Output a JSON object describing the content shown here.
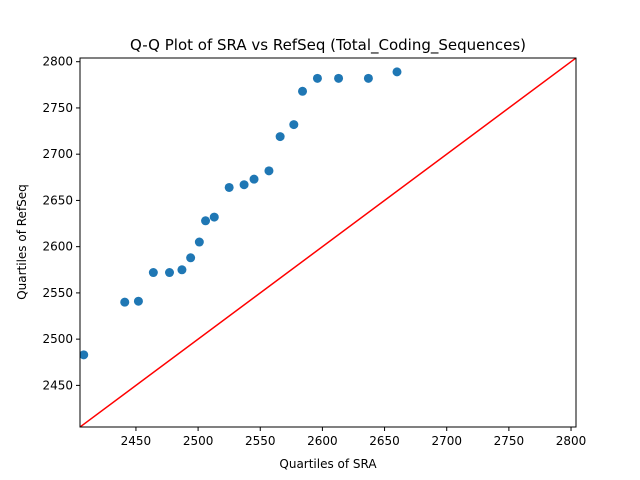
{
  "chart_data": {
    "type": "scatter",
    "title": "Q-Q Plot of SRA vs RefSeq (Total_Coding_Sequences)",
    "xlabel": "Quartiles of SRA",
    "ylabel": "Quartiles of RefSeq",
    "xlim": [
      2405,
      2804
    ],
    "ylim": [
      2405,
      2804
    ],
    "xticks": [
      2450,
      2500,
      2550,
      2600,
      2650,
      2700,
      2750,
      2800
    ],
    "yticks": [
      2450,
      2500,
      2550,
      2600,
      2650,
      2700,
      2750,
      2800
    ],
    "grid": false,
    "points": [
      {
        "x": 2408,
        "y": 2483
      },
      {
        "x": 2441,
        "y": 2540
      },
      {
        "x": 2452,
        "y": 2541
      },
      {
        "x": 2464,
        "y": 2572
      },
      {
        "x": 2477,
        "y": 2572
      },
      {
        "x": 2487,
        "y": 2575
      },
      {
        "x": 2494,
        "y": 2588
      },
      {
        "x": 2501,
        "y": 2605
      },
      {
        "x": 2506,
        "y": 2628
      },
      {
        "x": 2513,
        "y": 2632
      },
      {
        "x": 2525,
        "y": 2664
      },
      {
        "x": 2537,
        "y": 2667
      },
      {
        "x": 2545,
        "y": 2673
      },
      {
        "x": 2557,
        "y": 2682
      },
      {
        "x": 2566,
        "y": 2719
      },
      {
        "x": 2577,
        "y": 2732
      },
      {
        "x": 2584,
        "y": 2768
      },
      {
        "x": 2596,
        "y": 2782
      },
      {
        "x": 2613,
        "y": 2782
      },
      {
        "x": 2637,
        "y": 2782
      },
      {
        "x": 2660,
        "y": 2789
      }
    ],
    "reference_line": {
      "from": [
        2405,
        2405
      ],
      "to": [
        2804,
        2804
      ]
    },
    "colors": {
      "points": "#1f77b4",
      "reference_line": "#ff0000"
    }
  }
}
